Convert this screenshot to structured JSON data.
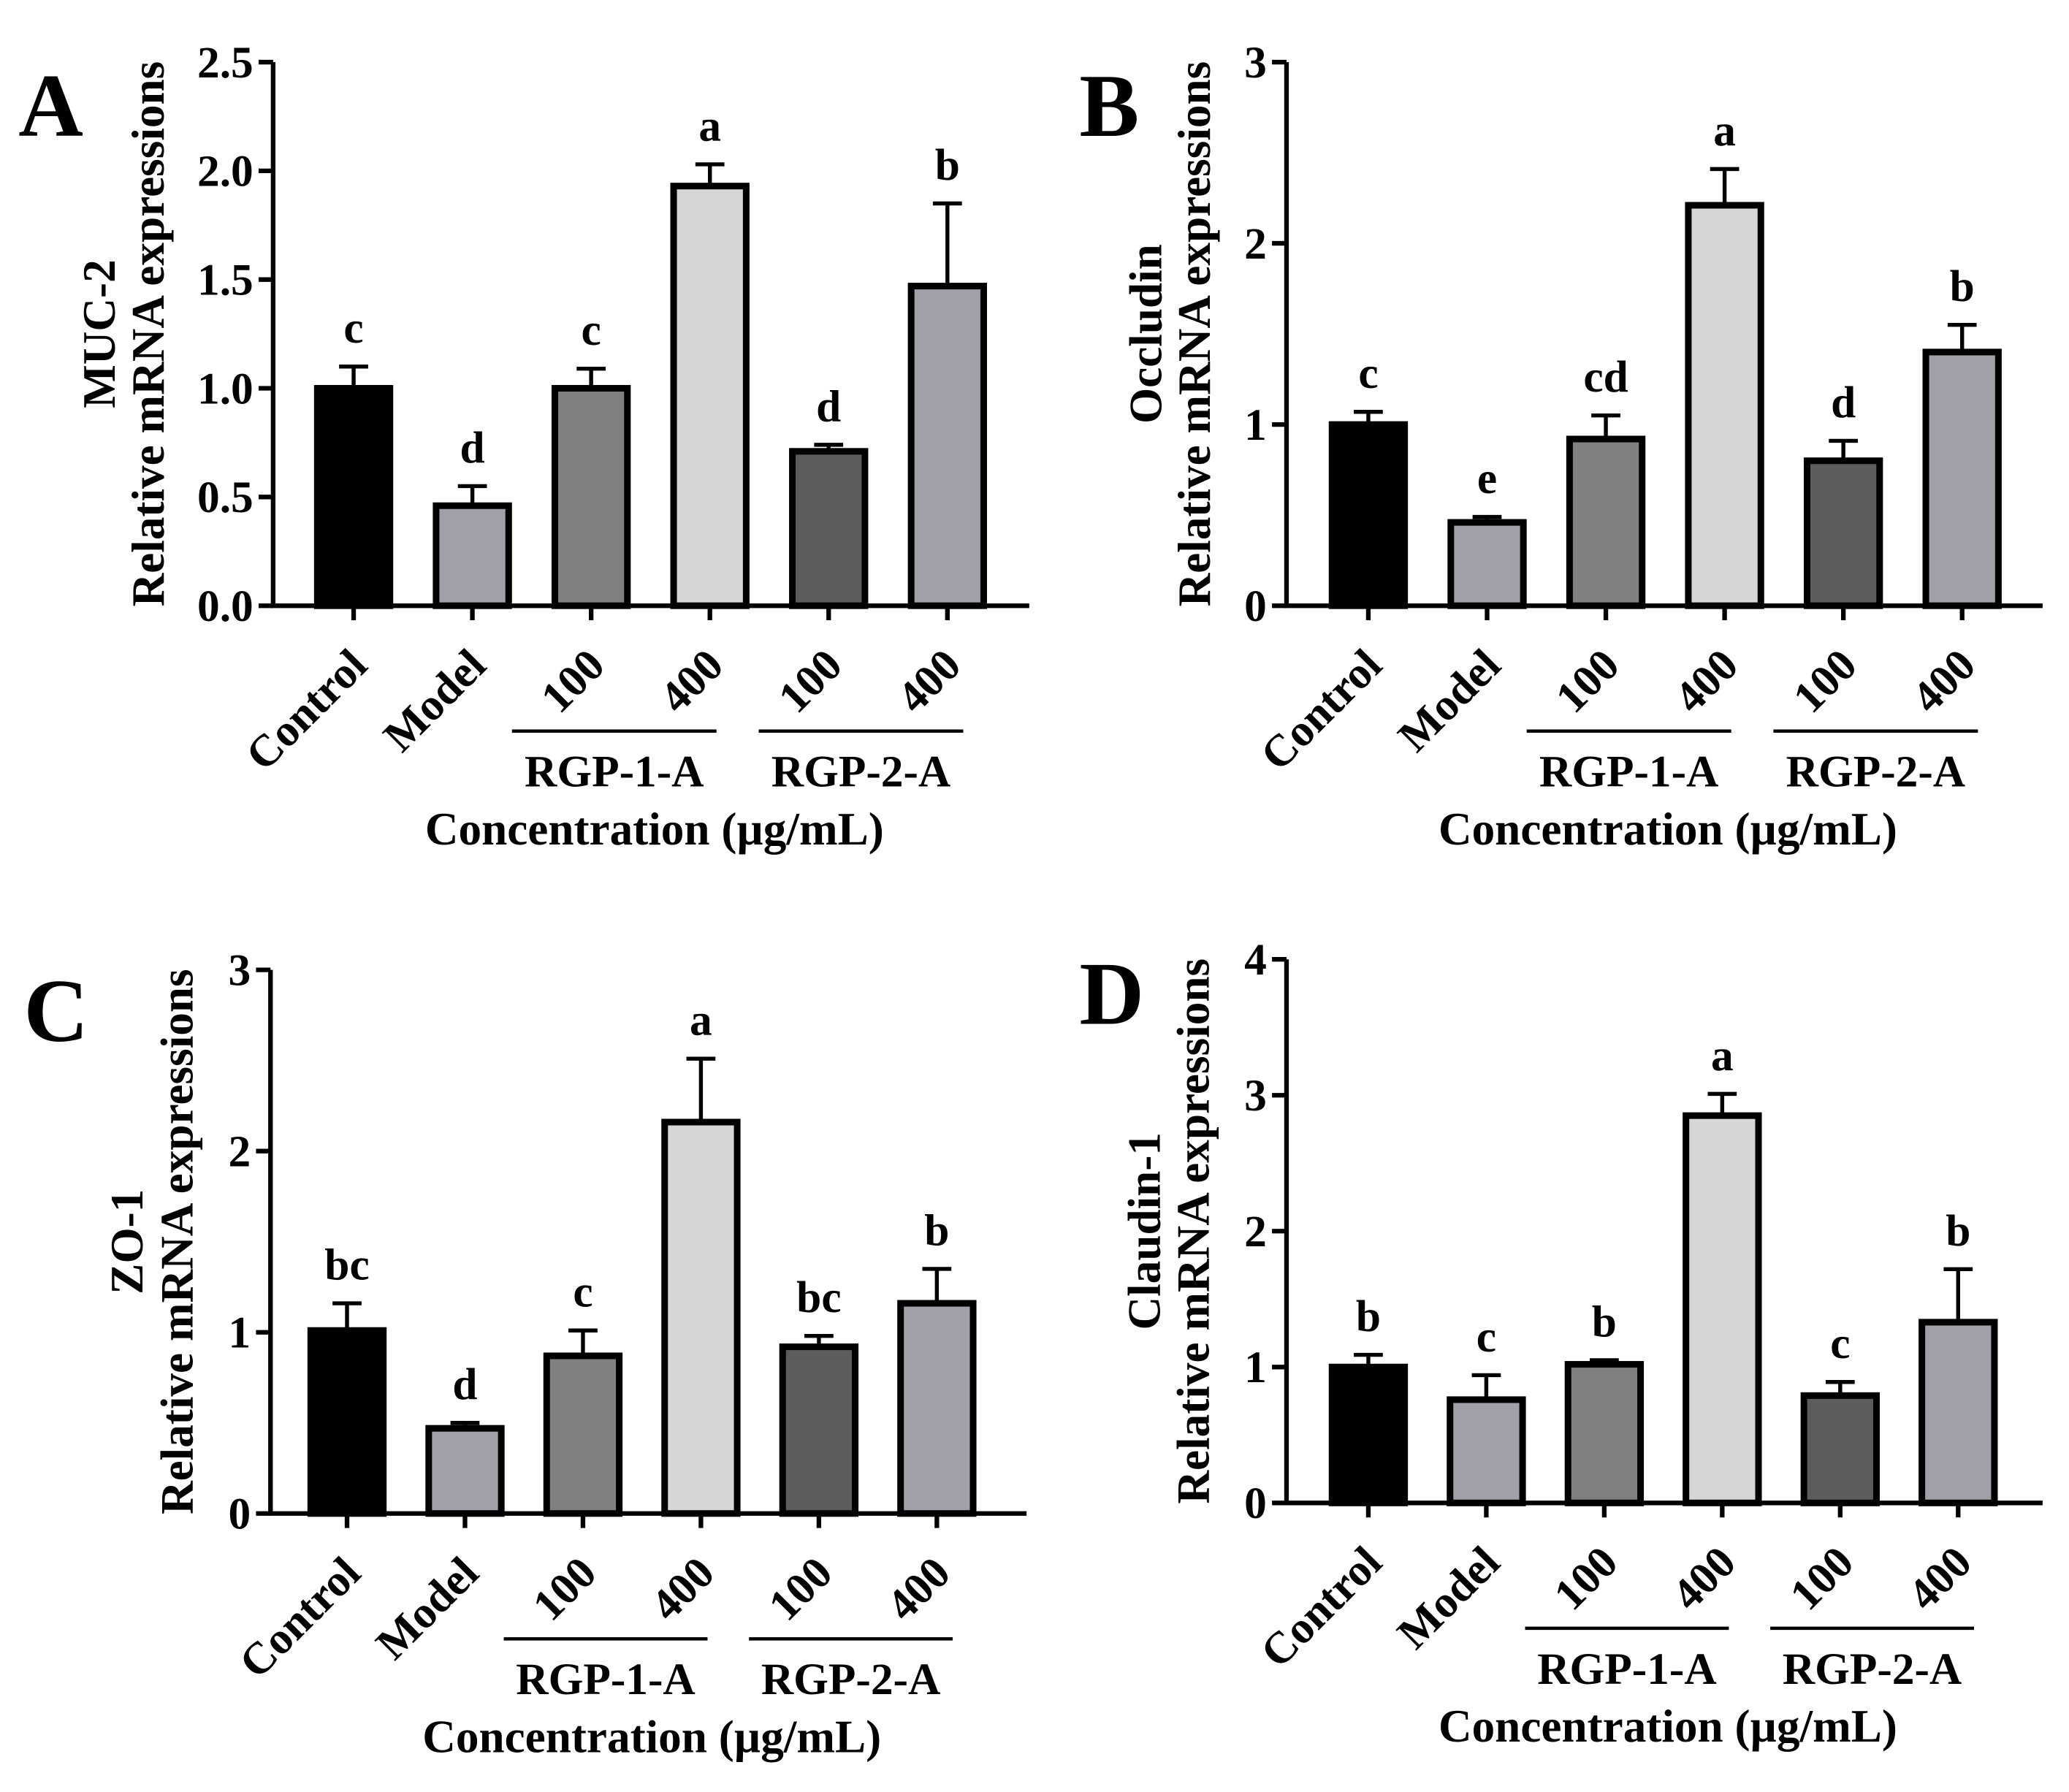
{
  "colors": {
    "background": "#ffffff",
    "axis": "#000000",
    "text": "#000000",
    "bar_outline": "#000000",
    "bar_fills": [
      "#000000",
      "#a0a0a8",
      "#808080",
      "#d6d6d6",
      "#5c5c5c",
      "#a0a0a8"
    ]
  },
  "chart_data": [
    {
      "panel": "A",
      "type": "bar",
      "ylabel": [
        "MUC-2",
        "Relative mRNA expressions"
      ],
      "xlabel": "Concentration (µg/mL)",
      "categories": [
        "Control",
        "Model",
        "100",
        "400",
        "100",
        "400"
      ],
      "groups": [
        {
          "label": "RGP-1-A",
          "members": [
            2,
            3
          ]
        },
        {
          "label": "RGP-2-A",
          "members": [
            4,
            5
          ]
        }
      ],
      "values": [
        1.0,
        0.46,
        1.0,
        1.93,
        0.71,
        1.47
      ],
      "sd": [
        0.1,
        0.09,
        0.09,
        0.1,
        0.03,
        0.38
      ],
      "significance": [
        "c",
        "d",
        "c",
        "a",
        "d",
        "b"
      ],
      "ylim": [
        0,
        2.5
      ],
      "yticks": [
        "0.0",
        "0.5",
        "1.0",
        "1.5",
        "2.0",
        "2.5"
      ],
      "grid": false
    },
    {
      "panel": "B",
      "type": "bar",
      "ylabel": [
        "Occludin",
        "Relative mRNA expressions"
      ],
      "xlabel": "Concentration (µg/mL)",
      "categories": [
        "Control",
        "Model",
        "100",
        "400",
        "100",
        "400"
      ],
      "groups": [
        {
          "label": "RGP-1-A",
          "members": [
            2,
            3
          ]
        },
        {
          "label": "RGP-2-A",
          "members": [
            4,
            5
          ]
        }
      ],
      "values": [
        1.0,
        0.46,
        0.92,
        2.21,
        0.8,
        1.4
      ],
      "sd": [
        0.07,
        0.03,
        0.13,
        0.2,
        0.11,
        0.15
      ],
      "significance": [
        "c",
        "e",
        "cd",
        "a",
        "d",
        "b"
      ],
      "ylim": [
        0,
        3
      ],
      "yticks": [
        "0",
        "1",
        "2",
        "3"
      ],
      "grid": false
    },
    {
      "panel": "C",
      "type": "bar",
      "ylabel": [
        "ZO-1",
        "Relative mRNA expressions"
      ],
      "xlabel": "Concentration (µg/mL)",
      "categories": [
        "Control",
        "Model",
        "100",
        "400",
        "100",
        "400"
      ],
      "groups": [
        {
          "label": "RGP-1-A",
          "members": [
            2,
            3
          ]
        },
        {
          "label": "RGP-2-A",
          "members": [
            4,
            5
          ]
        }
      ],
      "values": [
        1.01,
        0.47,
        0.87,
        2.16,
        0.92,
        1.16
      ],
      "sd": [
        0.15,
        0.03,
        0.14,
        0.35,
        0.06,
        0.19
      ],
      "significance": [
        "bc",
        "d",
        "c",
        "a",
        "bc",
        "b"
      ],
      "ylim": [
        0,
        3
      ],
      "yticks": [
        "0",
        "1",
        "2",
        "3"
      ],
      "grid": false
    },
    {
      "panel": "D",
      "type": "bar",
      "ylabel": [
        "Claudin-1",
        "Relative mRNA expressions"
      ],
      "xlabel": "Concentration (µg/mL)",
      "categories": [
        "Control",
        "Model",
        "100",
        "400",
        "100",
        "400"
      ],
      "groups": [
        {
          "label": "RGP-1-A",
          "members": [
            2,
            3
          ]
        },
        {
          "label": "RGP-2-A",
          "members": [
            4,
            5
          ]
        }
      ],
      "values": [
        1.0,
        0.76,
        1.02,
        2.85,
        0.79,
        1.33
      ],
      "sd": [
        0.09,
        0.18,
        0.03,
        0.16,
        0.1,
        0.39
      ],
      "significance": [
        "b",
        "c",
        "b",
        "a",
        "c",
        "b"
      ],
      "ylim": [
        0,
        4
      ],
      "yticks": [
        "0",
        "1",
        "2",
        "3",
        "4"
      ],
      "grid": false
    }
  ]
}
